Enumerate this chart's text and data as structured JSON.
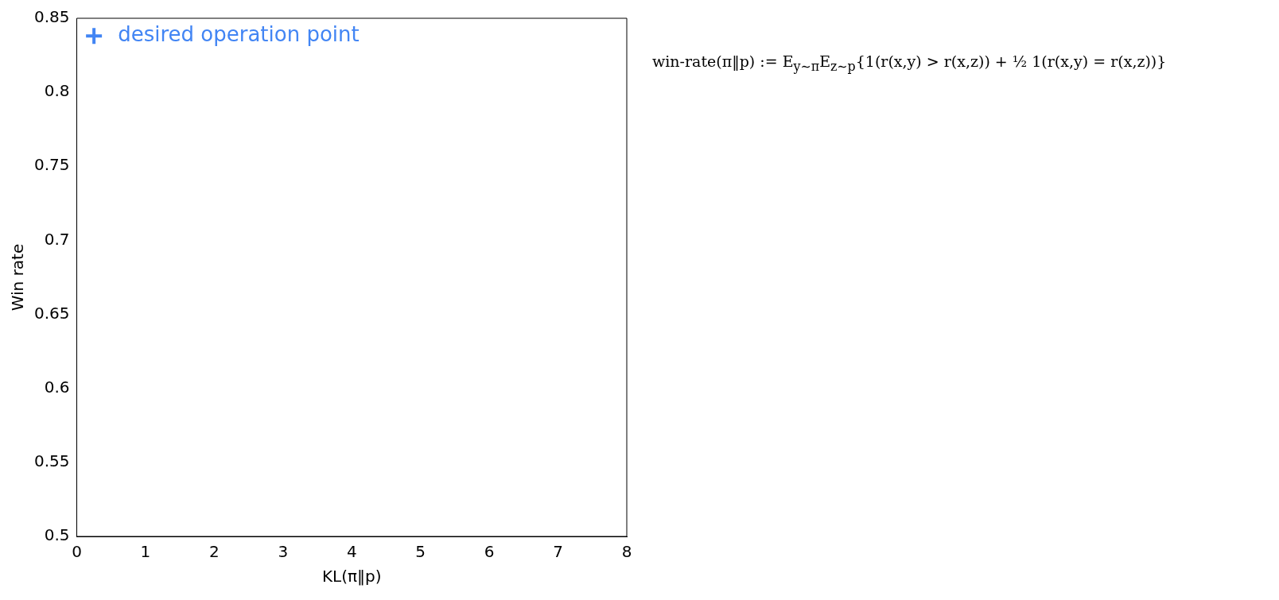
{
  "chart_data": {
    "type": "scatter",
    "xlabel": "KL(π‖p)",
    "ylabel": "Win rate",
    "series": [
      {
        "name": "desired operation point",
        "color": "#4285f4",
        "x": [
          0.25
        ],
        "values": [
          0.838
        ]
      }
    ],
    "xlim": [
      0,
      8
    ],
    "xticks": [
      0,
      1,
      2,
      3,
      4,
      5,
      6,
      7,
      8
    ],
    "ylim": [
      0.5,
      0.85
    ],
    "yticks": [
      0.5,
      0.55,
      0.6,
      0.65,
      0.7,
      0.75,
      0.8,
      0.85
    ],
    "marker": "cross",
    "grid": false,
    "legend": "top left",
    "annotations": [
      "win-rate(π‖p) := E$_{y∼π}$E$_{z∼p}${1(r(x,y) > r(x,z)) + ½ 1(r(x,y) = r(x,z))}"
    ]
  }
}
